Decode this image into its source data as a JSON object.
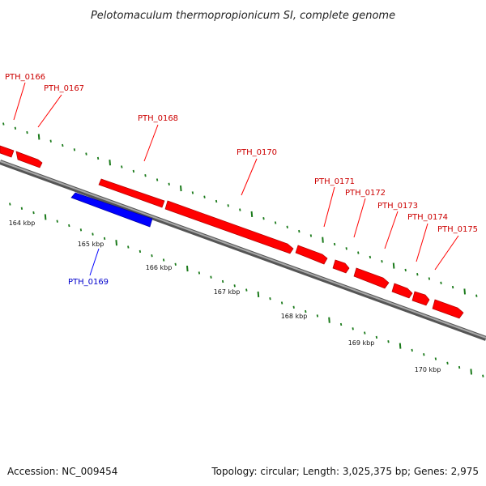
{
  "title": "Pelotomaculum thermopropionicum SI, complete genome",
  "footer": {
    "accession": "Accession: NC_009454",
    "summary": "Topology: circular; Length: 3,025,375 bp; Genes: 2,975"
  },
  "colors": {
    "forward_gene": "#ff0000",
    "reverse_gene": "#0000ff",
    "backbone": "#808080",
    "ticks": "#1a7a1a",
    "forward_label": "#cc0000",
    "reverse_label": "#0000cc"
  },
  "scale_labels": [
    "164 kbp",
    "165 kbp",
    "166 kbp",
    "167 kbp",
    "168 kbp",
    "169 kbp",
    "170 kbp"
  ],
  "genes": [
    {
      "name": "PTH_0166",
      "strand": "forward"
    },
    {
      "name": "PTH_0167",
      "strand": "forward"
    },
    {
      "name": "PTH_0168",
      "strand": "forward"
    },
    {
      "name": "PTH_0169",
      "strand": "reverse"
    },
    {
      "name": "PTH_0170",
      "strand": "forward"
    },
    {
      "name": "PTH_0171",
      "strand": "forward"
    },
    {
      "name": "PTH_0172",
      "strand": "forward"
    },
    {
      "name": "PTH_0173",
      "strand": "forward"
    },
    {
      "name": "PTH_0174",
      "strand": "forward"
    },
    {
      "name": "PTH_0175",
      "strand": "forward"
    }
  ]
}
